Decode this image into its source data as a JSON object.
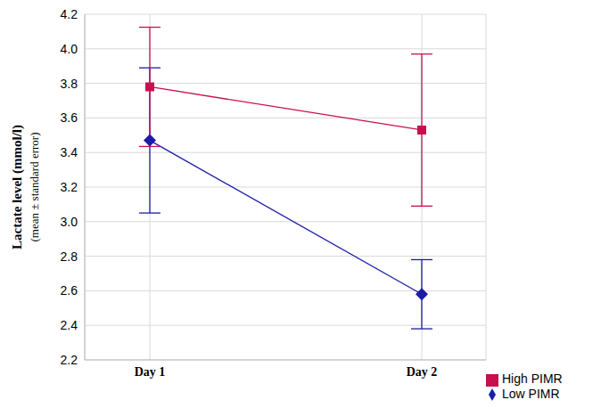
{
  "chart_data": {
    "type": "line",
    "y_label": "Lactate level (mmol/l)",
    "y_sublabel": "(mean ± standard error)",
    "categories": [
      "Day 1",
      "Day 2"
    ],
    "series": [
      {
        "name": "Low PIMR",
        "color": "#1c1ca8",
        "marker": "diamond",
        "values": [
          3.47,
          2.58
        ],
        "errors": [
          0.42,
          0.2
        ]
      },
      {
        "name": "High PIMR",
        "color": "#c8104e",
        "marker": "square",
        "values": [
          3.78,
          3.53
        ],
        "errors": [
          0.345,
          0.44
        ]
      }
    ],
    "ylim": [
      2.2,
      4.2
    ],
    "yticks": [
      2.2,
      2.4,
      2.6,
      2.8,
      {
        "value": 3,
        "label": "3.0"
      },
      3.2,
      3.4,
      3.6,
      3.8,
      {
        "value": 4,
        "label": "4.0"
      },
      4.2
    ],
    "grid": true,
    "legend": "bottom-right"
  }
}
